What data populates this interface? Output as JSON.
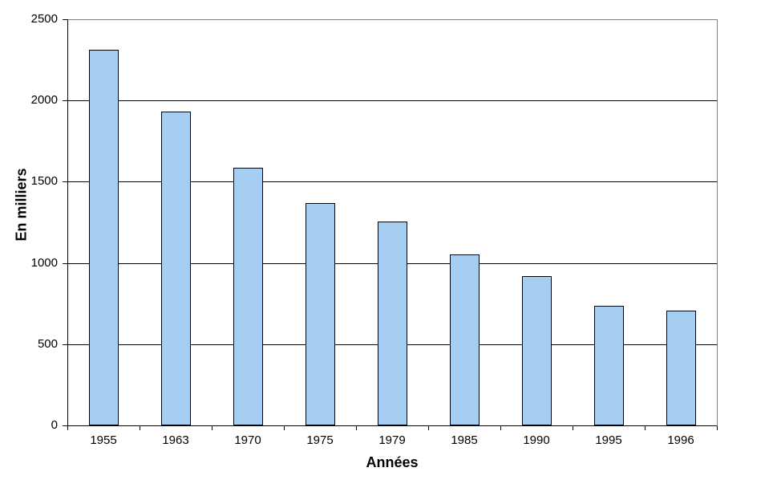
{
  "chart_data": {
    "type": "bar",
    "title": "",
    "categories": [
      "1955",
      "1963",
      "1970",
      "1975",
      "1979",
      "1985",
      "1990",
      "1995",
      "1996"
    ],
    "values": [
      2310,
      1930,
      1585,
      1370,
      1255,
      1050,
      920,
      735,
      705
    ],
    "xlabel": "Années",
    "ylabel": "En milliers",
    "ylim": [
      0,
      2500
    ],
    "yticks": [
      0,
      500,
      1000,
      1500,
      2000,
      2500
    ],
    "grid": true,
    "legend_position": "none",
    "bar_fill": "#A6CEF2",
    "bar_border": "#000000",
    "gridline_color": "#000000",
    "axis_color": "#000000",
    "plot_border_color": "#808080",
    "background": "#FFFFFF"
  }
}
